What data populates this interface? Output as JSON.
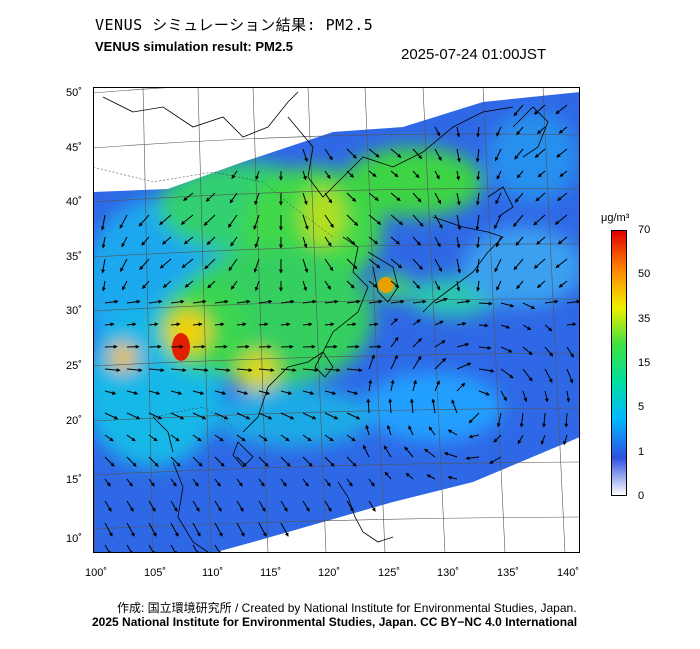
{
  "header": {
    "title_ja": "VENUS シミュレーション結果: PM2.5",
    "title_en": "VENUS simulation result: PM2.5",
    "timestamp": "2025-07-24 01:00JST"
  },
  "map": {
    "lat_labels": [
      "50˚",
      "45˚",
      "40˚",
      "35˚",
      "30˚",
      "25˚",
      "20˚",
      "15˚",
      "10˚"
    ],
    "lon_labels": [
      "100˚",
      "105˚",
      "110˚",
      "115˚",
      "120˚",
      "125˚",
      "130˚",
      "135˚",
      "140˚"
    ],
    "ylim": [
      10,
      50
    ],
    "xlim": [
      100,
      140
    ]
  },
  "colorbar": {
    "unit": "μg/m³",
    "ticks": [
      "70",
      "50",
      "35",
      "15",
      "5",
      "1",
      "0"
    ],
    "colors": [
      "#ffffff",
      "#3050e0",
      "#00b8ff",
      "#00e0a0",
      "#40e040",
      "#f0f000",
      "#ff8000",
      "#e00000"
    ]
  },
  "footer": {
    "credit": "作成: 国立環境研究所 / Created by National Institute for Environmental Studies, Japan.",
    "copyright": "2025 National Institute for Environmental Studies, Japan. CC BY−NC 4.0 International"
  }
}
